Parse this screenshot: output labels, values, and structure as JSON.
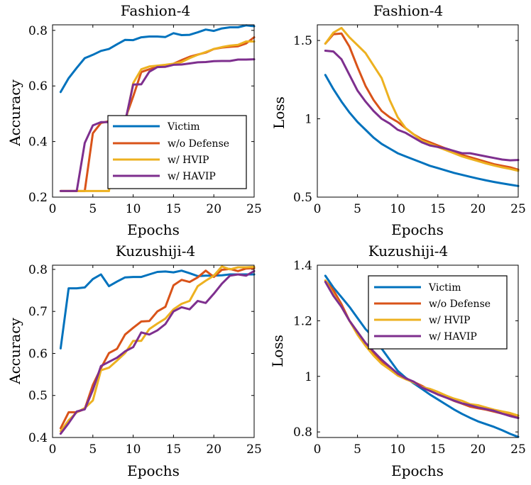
{
  "colors": {
    "Victim": "#0072BD",
    "w/o Defense": "#D95319",
    "w/ HVIP": "#EDB120",
    "w/ HAVIP": "#7E2F8E"
  },
  "chart_data": [
    {
      "id": "fashion-accuracy",
      "type": "line",
      "title": "Fashion-4",
      "xlabel": "Epochs",
      "ylabel": "Accuracy",
      "xlim": [
        0,
        25
      ],
      "ylim": [
        0.2,
        0.82
      ],
      "xticks": [
        0,
        5,
        10,
        15,
        20,
        25
      ],
      "yticks": [
        0.2,
        0.4,
        0.6,
        0.8
      ],
      "ytick_labels": [
        "0.2",
        "0.4",
        "0.6",
        "0.8"
      ],
      "legend": "bottom-right-inside",
      "x": [
        1,
        2,
        3,
        4,
        5,
        6,
        7,
        8,
        9,
        10,
        11,
        12,
        13,
        14,
        15,
        16,
        17,
        18,
        19,
        20,
        21,
        22,
        23,
        24,
        25
      ],
      "series": [
        {
          "name": "Victim",
          "values": [
            0.578,
            0.628,
            0.665,
            0.7,
            0.712,
            0.726,
            0.733,
            0.75,
            0.766,
            0.765,
            0.775,
            0.778,
            0.778,
            0.776,
            0.79,
            0.783,
            0.784,
            0.793,
            0.803,
            0.798,
            0.807,
            0.811,
            0.811,
            0.818,
            0.815
          ]
        },
        {
          "name": "w/o Defense",
          "values": [
            0.222,
            0.222,
            0.222,
            0.222,
            0.43,
            0.467,
            0.473,
            0.473,
            0.48,
            0.562,
            0.65,
            0.66,
            0.669,
            0.673,
            0.68,
            0.693,
            0.705,
            0.713,
            0.72,
            0.733,
            0.738,
            0.741,
            0.743,
            0.753,
            0.775
          ]
        },
        {
          "name": "w/ HVIP",
          "values": [
            0.222,
            0.222,
            0.222,
            0.222,
            0.222,
            0.222,
            0.222,
            0.451,
            0.461,
            0.61,
            0.66,
            0.67,
            0.673,
            0.676,
            0.68,
            0.686,
            0.7,
            0.712,
            0.722,
            0.733,
            0.74,
            0.745,
            0.748,
            0.76,
            0.76
          ]
        },
        {
          "name": "w/ HAVIP",
          "values": [
            0.222,
            0.222,
            0.222,
            0.395,
            0.458,
            0.47,
            0.47,
            0.468,
            0.47,
            0.605,
            0.606,
            0.651,
            0.668,
            0.669,
            0.676,
            0.677,
            0.681,
            0.685,
            0.686,
            0.689,
            0.69,
            0.69,
            0.695,
            0.695,
            0.696
          ]
        }
      ]
    },
    {
      "id": "fashion-loss",
      "type": "line",
      "title": "Fashion-4",
      "xlabel": "Epochs",
      "ylabel": "Loss",
      "xlim": [
        0,
        25
      ],
      "ylim": [
        0.5,
        1.6
      ],
      "xticks": [
        0,
        5,
        10,
        15,
        20,
        25
      ],
      "yticks": [
        0.5,
        1.0,
        1.5
      ],
      "ytick_labels": [
        "0.5",
        "1",
        "1.5"
      ],
      "legend": "none",
      "x": [
        1,
        2,
        3,
        4,
        5,
        6,
        7,
        8,
        9,
        10,
        11,
        12,
        13,
        14,
        15,
        16,
        17,
        18,
        19,
        20,
        21,
        22,
        23,
        24,
        25
      ],
      "series": [
        {
          "name": "Victim",
          "values": [
            1.28,
            1.19,
            1.11,
            1.04,
            0.98,
            0.93,
            0.88,
            0.84,
            0.81,
            0.78,
            0.76,
            0.74,
            0.72,
            0.7,
            0.685,
            0.67,
            0.655,
            0.642,
            0.63,
            0.618,
            0.607,
            0.597,
            0.588,
            0.579,
            0.571
          ]
        },
        {
          "name": "w/o Defense",
          "values": [
            1.48,
            1.54,
            1.545,
            1.46,
            1.33,
            1.21,
            1.12,
            1.05,
            1.01,
            0.98,
            0.94,
            0.9,
            0.87,
            0.85,
            0.83,
            0.81,
            0.79,
            0.77,
            0.755,
            0.74,
            0.725,
            0.71,
            0.7,
            0.69,
            0.675
          ]
        },
        {
          "name": "w/ HVIP",
          "values": [
            1.48,
            1.55,
            1.58,
            1.52,
            1.47,
            1.42,
            1.34,
            1.26,
            1.12,
            1.01,
            0.94,
            0.9,
            0.86,
            0.84,
            0.82,
            0.8,
            0.78,
            0.76,
            0.745,
            0.73,
            0.715,
            0.702,
            0.69,
            0.68,
            0.668
          ]
        },
        {
          "name": "w/ HAVIP",
          "values": [
            1.435,
            1.43,
            1.38,
            1.28,
            1.18,
            1.11,
            1.05,
            1.0,
            0.97,
            0.93,
            0.91,
            0.88,
            0.85,
            0.83,
            0.82,
            0.81,
            0.795,
            0.78,
            0.78,
            0.77,
            0.76,
            0.75,
            0.74,
            0.735,
            0.737
          ]
        }
      ]
    },
    {
      "id": "kuzushiji-accuracy",
      "type": "line",
      "title": "Kuzushiji-4",
      "xlabel": "Epochs",
      "ylabel": "Accuracy",
      "xlim": [
        0,
        25
      ],
      "ylim": [
        0.4,
        0.81
      ],
      "xticks": [
        0,
        5,
        10,
        15,
        20,
        25
      ],
      "yticks": [
        0.4,
        0.5,
        0.6,
        0.7,
        0.8
      ],
      "ytick_labels": [
        "0.4",
        "0.5",
        "0.6",
        "0.7",
        "0.8"
      ],
      "legend": "none",
      "x": [
        1,
        2,
        3,
        4,
        5,
        6,
        7,
        8,
        9,
        10,
        11,
        12,
        13,
        14,
        15,
        16,
        17,
        18,
        19,
        20,
        21,
        22,
        23,
        24,
        25
      ],
      "series": [
        {
          "name": "Victim",
          "values": [
            0.612,
            0.755,
            0.755,
            0.757,
            0.777,
            0.788,
            0.76,
            0.771,
            0.781,
            0.782,
            0.782,
            0.788,
            0.794,
            0.795,
            0.793,
            0.797,
            0.791,
            0.784,
            0.785,
            0.785,
            0.786,
            0.788,
            0.788,
            0.788,
            0.788
          ]
        },
        {
          "name": "w/o Defense",
          "values": [
            0.422,
            0.46,
            0.46,
            0.468,
            0.525,
            0.565,
            0.601,
            0.611,
            0.645,
            0.661,
            0.676,
            0.677,
            0.7,
            0.711,
            0.762,
            0.775,
            0.77,
            0.781,
            0.797,
            0.782,
            0.799,
            0.801,
            0.796,
            0.802,
            0.803
          ]
        },
        {
          "name": "w/ HVIP",
          "values": [
            0.415,
            0.441,
            0.46,
            0.47,
            0.488,
            0.56,
            0.566,
            0.583,
            0.601,
            0.63,
            0.63,
            0.658,
            0.671,
            0.683,
            0.705,
            0.718,
            0.725,
            0.76,
            0.773,
            0.785,
            0.807,
            0.8,
            0.805,
            0.805,
            0.806
          ]
        },
        {
          "name": "w/ HAVIP",
          "values": [
            0.409,
            0.434,
            0.462,
            0.467,
            0.513,
            0.57,
            0.58,
            0.59,
            0.605,
            0.615,
            0.65,
            0.645,
            0.655,
            0.67,
            0.7,
            0.71,
            0.705,
            0.725,
            0.72,
            0.742,
            0.766,
            0.785,
            0.788,
            0.785,
            0.796
          ]
        }
      ]
    },
    {
      "id": "kuzushiji-loss",
      "type": "line",
      "title": "Kuzushiji-4",
      "xlabel": "Epochs",
      "ylabel": "Loss",
      "xlim": [
        0,
        25
      ],
      "ylim": [
        0.78,
        1.4
      ],
      "xticks": [
        0,
        5,
        10,
        15,
        20,
        25
      ],
      "yticks": [
        0.8,
        1.0,
        1.2,
        1.4
      ],
      "ytick_labels": [
        "0.8",
        "1",
        "1.2",
        "1.4"
      ],
      "legend": "top-right-inside",
      "x": [
        1,
        2,
        3,
        4,
        5,
        6,
        7,
        8,
        9,
        10,
        11,
        12,
        13,
        14,
        15,
        16,
        17,
        18,
        19,
        20,
        21,
        22,
        23,
        24,
        25
      ],
      "series": [
        {
          "name": "Victim",
          "values": [
            1.362,
            1.32,
            1.285,
            1.25,
            1.21,
            1.17,
            1.14,
            1.1,
            1.06,
            1.02,
            0.995,
            0.975,
            0.955,
            0.935,
            0.917,
            0.899,
            0.881,
            0.865,
            0.851,
            0.838,
            0.828,
            0.818,
            0.806,
            0.793,
            0.782
          ]
        },
        {
          "name": "w/o Defense",
          "values": [
            1.345,
            1.31,
            1.26,
            1.2,
            1.16,
            1.12,
            1.08,
            1.05,
            1.03,
            1.01,
            0.99,
            0.98,
            0.966,
            0.95,
            0.935,
            0.925,
            0.912,
            0.902,
            0.891,
            0.885,
            0.88,
            0.873,
            0.866,
            0.86,
            0.851
          ]
        },
        {
          "name": "w/ HVIP",
          "values": [
            1.345,
            1.295,
            1.25,
            1.2,
            1.15,
            1.11,
            1.075,
            1.045,
            1.025,
            1.003,
            0.99,
            0.978,
            0.962,
            0.955,
            0.944,
            0.931,
            0.92,
            0.912,
            0.9,
            0.896,
            0.888,
            0.88,
            0.874,
            0.868,
            0.859
          ]
        },
        {
          "name": "w/ HAVIP",
          "values": [
            1.34,
            1.29,
            1.25,
            1.2,
            1.16,
            1.12,
            1.09,
            1.06,
            1.035,
            1.01,
            0.993,
            0.981,
            0.96,
            0.948,
            0.935,
            0.924,
            0.913,
            0.903,
            0.896,
            0.888,
            0.882,
            0.876,
            0.866,
            0.857,
            0.85
          ]
        }
      ]
    }
  ]
}
